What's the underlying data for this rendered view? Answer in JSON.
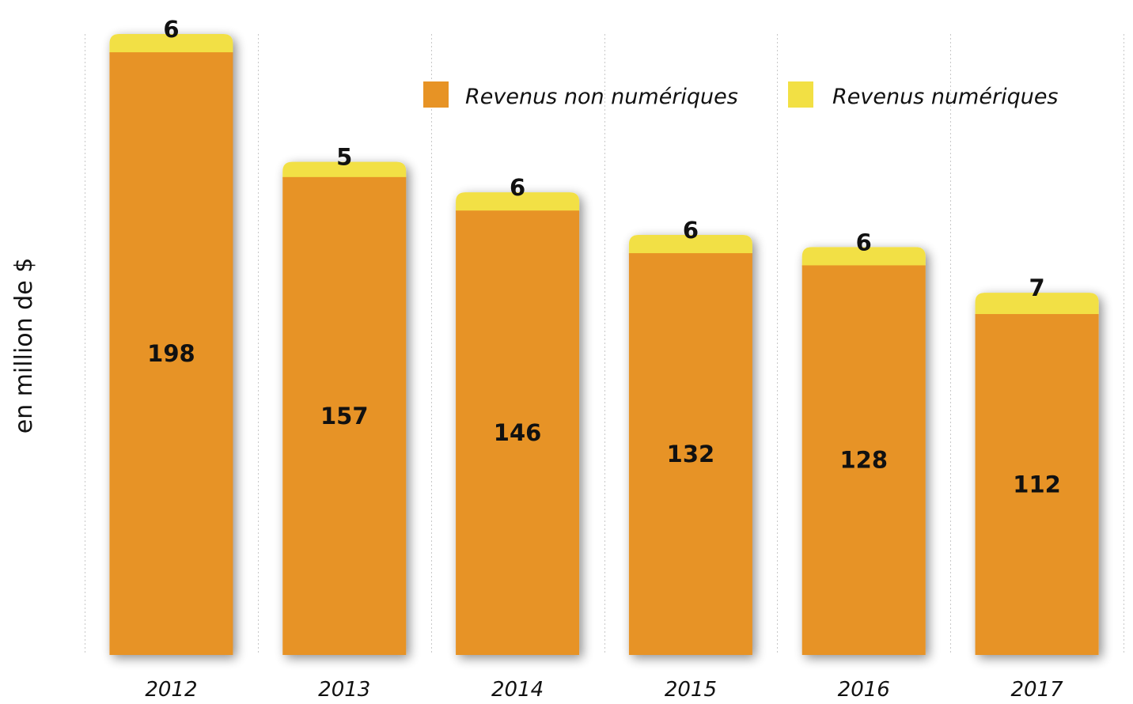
{
  "chart_data": {
    "type": "bar",
    "stacked": true,
    "categories": [
      "2012",
      "2013",
      "2014",
      "2015",
      "2016",
      "2017"
    ],
    "series": [
      {
        "name": "Revenus non numériques",
        "color": "#E79325",
        "values": [
          198,
          157,
          146,
          132,
          128,
          112
        ]
      },
      {
        "name": "Revenus numériques",
        "color": "#F2E044",
        "values": [
          6,
          5,
          6,
          6,
          6,
          7
        ]
      }
    ],
    "ylabel": "en million de $",
    "xlabel": "",
    "ylim": [
      0,
      204
    ],
    "grid": "vertical dotted separators",
    "legend_position": "top-right",
    "data_labels": true
  }
}
